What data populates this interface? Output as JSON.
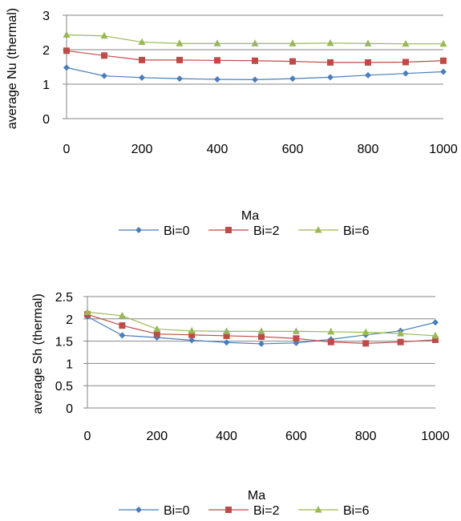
{
  "chart_data": [
    {
      "type": "line",
      "xlabel": "Ma",
      "ylabel": "average Nu (thermal)",
      "xlim": [
        0,
        1000
      ],
      "ylim": [
        0,
        3
      ],
      "x_ticks": [
        "0",
        "200",
        "400",
        "600",
        "800",
        "1000"
      ],
      "y_ticks": [
        "0",
        "1",
        "2",
        "3"
      ],
      "grid": "horizontal",
      "legend_position": "bottom",
      "x": [
        0,
        100,
        200,
        300,
        400,
        500,
        600,
        700,
        800,
        900,
        1000
      ],
      "series": [
        {
          "name": "Bi=0",
          "color": "#4a7ebb",
          "marker": "diamond",
          "values": [
            1.48,
            1.24,
            1.19,
            1.16,
            1.14,
            1.13,
            1.16,
            1.2,
            1.26,
            1.31,
            1.36
          ]
        },
        {
          "name": "Bi=2",
          "color": "#be4b48",
          "marker": "square",
          "values": [
            1.97,
            1.83,
            1.7,
            1.7,
            1.69,
            1.68,
            1.66,
            1.63,
            1.63,
            1.64,
            1.68
          ]
        },
        {
          "name": "Bi=6",
          "color": "#98b954",
          "marker": "triangle",
          "values": [
            2.43,
            2.4,
            2.22,
            2.18,
            2.18,
            2.18,
            2.18,
            2.19,
            2.18,
            2.17,
            2.17
          ]
        }
      ]
    },
    {
      "type": "line",
      "xlabel": "Ma",
      "ylabel": "average Sh (thermal)",
      "xlim": [
        0,
        1000
      ],
      "ylim": [
        0,
        2.5
      ],
      "x_ticks": [
        "0",
        "200",
        "400",
        "600",
        "800",
        "1000"
      ],
      "y_ticks": [
        "0",
        "0.5",
        "1",
        "1.5",
        "2",
        "2.5"
      ],
      "grid": "horizontal",
      "legend_position": "bottom",
      "x": [
        0,
        100,
        200,
        300,
        400,
        500,
        600,
        700,
        800,
        900,
        1000
      ],
      "series": [
        {
          "name": "Bi=0",
          "color": "#4a7ebb",
          "marker": "diamond",
          "values": [
            2.05,
            1.63,
            1.58,
            1.52,
            1.47,
            1.44,
            1.46,
            1.54,
            1.64,
            1.73,
            1.92
          ]
        },
        {
          "name": "Bi=2",
          "color": "#be4b48",
          "marker": "square",
          "values": [
            2.1,
            1.85,
            1.66,
            1.64,
            1.62,
            1.6,
            1.56,
            1.48,
            1.45,
            1.48,
            1.53
          ]
        },
        {
          "name": "Bi=6",
          "color": "#98b954",
          "marker": "triangle",
          "values": [
            2.15,
            2.07,
            1.77,
            1.73,
            1.72,
            1.72,
            1.72,
            1.71,
            1.7,
            1.67,
            1.62
          ]
        }
      ]
    }
  ]
}
